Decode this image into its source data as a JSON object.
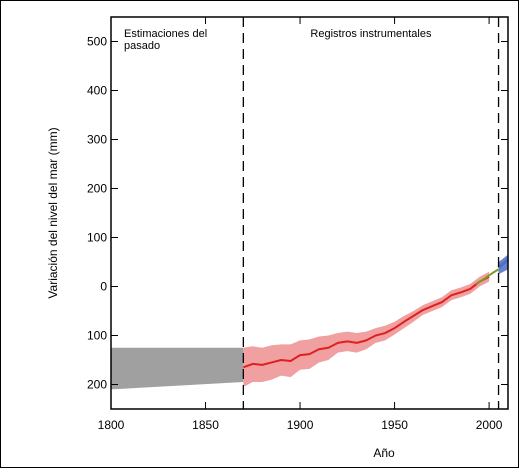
{
  "chart_data": {
    "type": "line",
    "title": "",
    "xlabel": "Año",
    "ylabel": "Variación del nivel del mar  (mm)",
    "xlim": [
      1800,
      2010
    ],
    "ylim": [
      -250,
      550
    ],
    "grid": false,
    "x_ticks": [
      {
        "value": 1800,
        "label": "1800"
      },
      {
        "value": 1850,
        "label": "1850"
      },
      {
        "value": 1900,
        "label": "1900"
      },
      {
        "value": 1950,
        "label": "1950"
      },
      {
        "value": 2000,
        "label": "2000"
      }
    ],
    "y_ticks": [
      {
        "value": 500,
        "label": "500"
      },
      {
        "value": 400,
        "label": "400"
      },
      {
        "value": 300,
        "label": "300"
      },
      {
        "value": 200,
        "label": "200"
      },
      {
        "value": 100,
        "label": "100"
      },
      {
        "value": 0,
        "label": "0"
      },
      {
        "value": -100,
        "label": "100"
      },
      {
        "value": -200,
        "label": "200"
      }
    ],
    "regions": [
      {
        "label": "Estimaciones del pasado",
        "label_lines": [
          "Estimaciones del",
          "pasado"
        ],
        "x_start": 1800,
        "x_end": 1870
      },
      {
        "label": "Registros instrumentales",
        "label_lines": [
          "Registros instrumentales"
        ],
        "x_start": 1870,
        "x_end": 2005
      }
    ],
    "dividers": [
      1870,
      2005
    ],
    "past_estimate_band": {
      "color": "#a0a0a0",
      "x": [
        1800,
        1870
      ],
      "upper": [
        -125,
        -125
      ],
      "lower": [
        -210,
        -195
      ]
    },
    "series": [
      {
        "color": "#e02020",
        "band_color": "#f0a0a0",
        "x": [
          1870,
          1875,
          1880,
          1885,
          1890,
          1895,
          1900,
          1905,
          1910,
          1915,
          1920,
          1925,
          1930,
          1935,
          1940,
          1945,
          1950,
          1955,
          1960,
          1965,
          1970,
          1975,
          1980,
          1985,
          1990,
          1995,
          2000
        ],
        "values": [
          -165,
          -158,
          -160,
          -155,
          -150,
          -152,
          -140,
          -138,
          -128,
          -125,
          -115,
          -112,
          -115,
          -110,
          -100,
          -95,
          -85,
          -72,
          -60,
          -48,
          -40,
          -32,
          -18,
          -12,
          -5,
          10,
          20
        ],
        "upper": [
          -125,
          -122,
          -125,
          -120,
          -118,
          -118,
          -110,
          -108,
          -102,
          -100,
          -95,
          -92,
          -95,
          -92,
          -85,
          -80,
          -72,
          -60,
          -50,
          -38,
          -30,
          -22,
          -8,
          -2,
          5,
          20,
          30
        ],
        "lower": [
          -205,
          -195,
          -195,
          -190,
          -182,
          -185,
          -170,
          -168,
          -155,
          -150,
          -135,
          -132,
          -135,
          -128,
          -115,
          -110,
          -98,
          -85,
          -72,
          -58,
          -50,
          -42,
          -28,
          -22,
          -15,
          0,
          10
        ]
      },
      {
        "color": "#7f9a20",
        "x": [
          1993,
          1996,
          1999,
          2002,
          2005
        ],
        "values": [
          5,
          12,
          20,
          28,
          35
        ]
      },
      {
        "color": "#4f6fc4",
        "band_color": "#4f6fc4",
        "x": [
          2005,
          2010
        ],
        "values": [
          38,
          55
        ],
        "upper": [
          50,
          65
        ],
        "lower": [
          25,
          35
        ]
      }
    ]
  }
}
